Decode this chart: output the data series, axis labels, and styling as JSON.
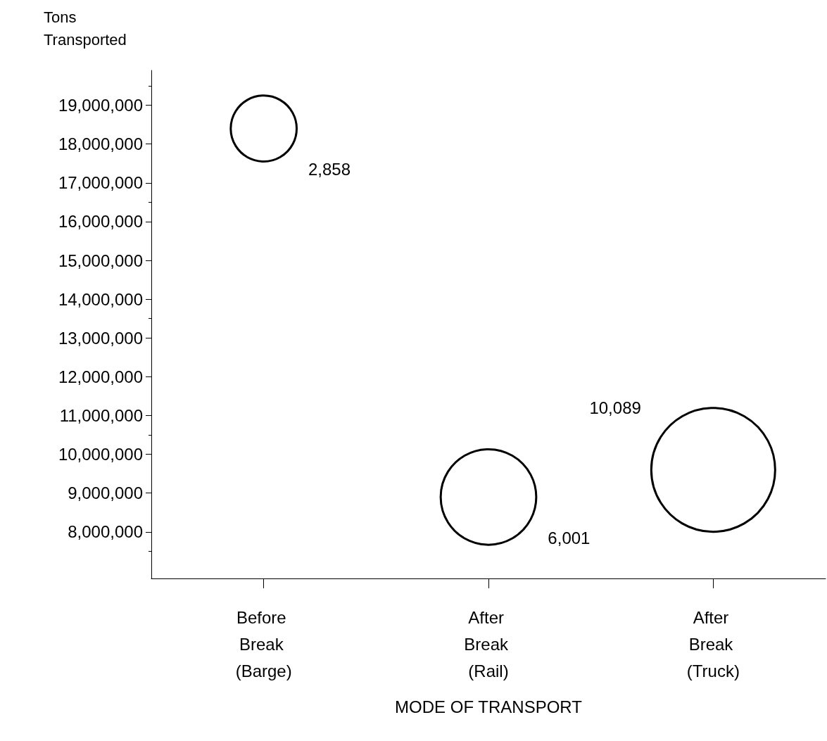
{
  "chart_data": {
    "type": "bubble",
    "xlabel": "MODE OF TRANSPORT",
    "ylabel": "Tons Transported",
    "categories": [
      "Before Break (Barge)",
      "After Break (Rail)",
      "After Break (Truck)"
    ],
    "series": [
      {
        "color": "#000000",
        "values": [
          18400000,
          8900000,
          9600000
        ],
        "sizes": [
          2858,
          6001,
          10089
        ],
        "value_labels": [
          "2,858",
          "6,001",
          "10,089"
        ]
      }
    ],
    "ylim": [
      6800000,
      19900000
    ],
    "yticks": [
      {
        "value": 8000000,
        "label": "8,000,000"
      },
      {
        "value": 9000000,
        "label": "9,000,000"
      },
      {
        "value": 10000000,
        "label": "10,000,000"
      },
      {
        "value": 11000000,
        "label": "11,000,000"
      },
      {
        "value": 12000000,
        "label": "12,000,000"
      },
      {
        "value": 13000000,
        "label": "13,000,000"
      },
      {
        "value": 14000000,
        "label": "14,000,000"
      },
      {
        "value": 15000000,
        "label": "15,000,000"
      },
      {
        "value": 16000000,
        "label": "16,000,000"
      },
      {
        "value": 17000000,
        "label": "17,000,000"
      },
      {
        "value": 18000000,
        "label": "18,000,000"
      },
      {
        "value": 19000000,
        "label": "19,000,000"
      }
    ],
    "grid": false
  }
}
